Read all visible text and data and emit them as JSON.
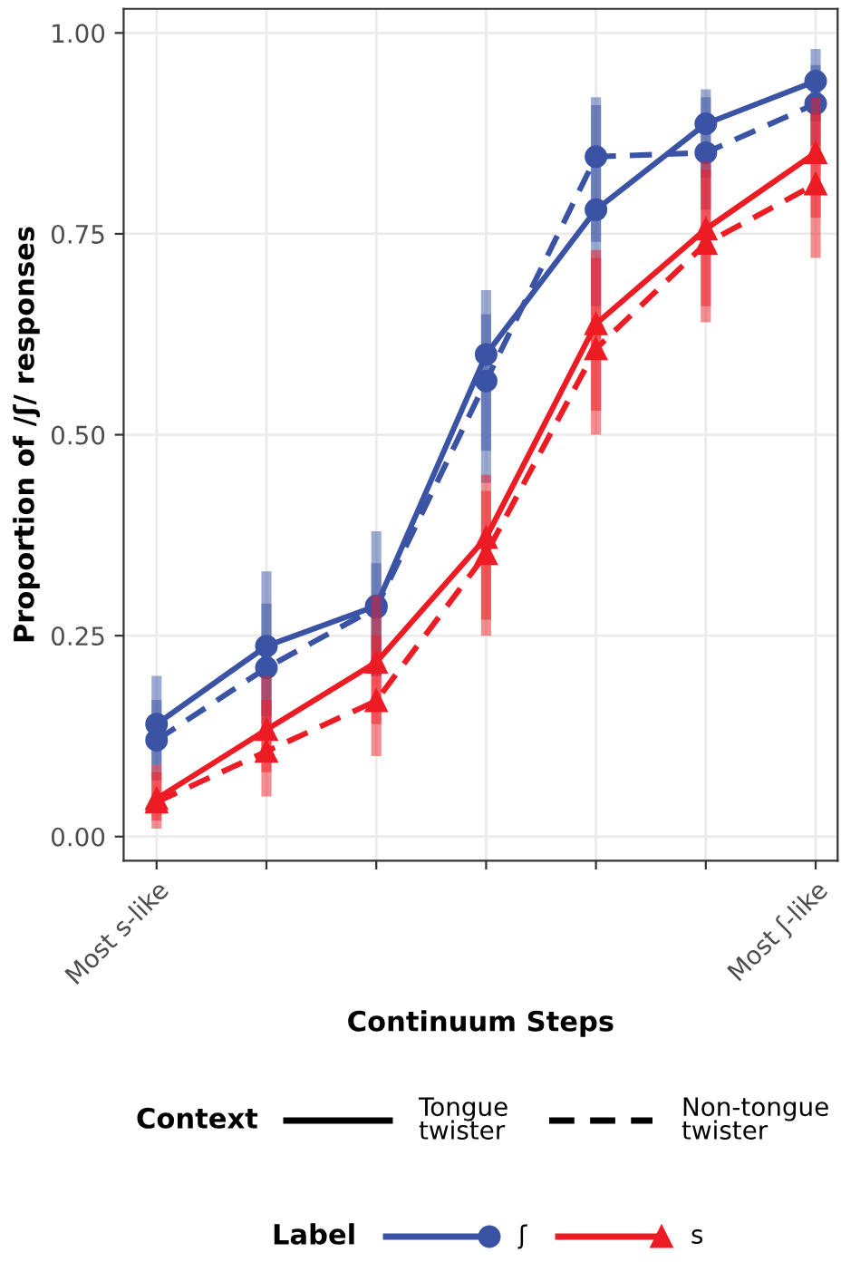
{
  "chart_data": {
    "type": "line",
    "xlabel": "Continuum Steps",
    "ylabel": "Proportion of /ʃ/ responses",
    "categories": [
      "Most s-like",
      null,
      null,
      null,
      null,
      null,
      "Most ʃ-like"
    ],
    "ylim": [
      -0.03,
      1.03
    ],
    "yticks": [
      {
        "value": 0,
        "label": "0.00"
      },
      {
        "value": 0.25,
        "label": "0.25"
      },
      {
        "value": 0.5,
        "label": "0.50"
      },
      {
        "value": 0.75,
        "label": "0.75"
      },
      {
        "value": 1,
        "label": "1.00"
      }
    ],
    "grid": true,
    "legend": "bottom",
    "legend_title": "Label",
    "annotations": [
      "Context",
      "Tongue twister",
      "Non-tongue twister"
    ],
    "series": [
      {
        "name": "ʃ",
        "color": "#3a53a4",
        "marker": "circle",
        "line_style": "solid",
        "values": [
          0.14,
          0.237,
          0.287,
          0.6,
          0.78,
          0.887,
          0.94
        ],
        "errors": [
          [
            0.09,
            0.2
          ],
          [
            0.15,
            0.33
          ],
          [
            0.2,
            0.38
          ],
          [
            0.48,
            0.68
          ],
          [
            0.66,
            0.91
          ],
          [
            0.82,
            0.93
          ],
          [
            0.89,
            0.98
          ]
        ]
      },
      {
        "color": "#3a53a4",
        "marker": "circle",
        "line_style": "dashed",
        "values": [
          0.12,
          0.21,
          0.285,
          0.567,
          0.846,
          0.851,
          0.912
        ],
        "errors": [
          [
            0.07,
            0.17
          ],
          [
            0.14,
            0.29
          ],
          [
            0.2,
            0.34
          ],
          [
            0.44,
            0.65
          ],
          [
            0.74,
            0.92
          ],
          [
            0.78,
            0.92
          ],
          [
            0.86,
            0.96
          ]
        ]
      },
      {
        "name": "s",
        "color": "#ed1c24",
        "marker": "triangle",
        "line_style": "solid",
        "values": [
          0.047,
          0.133,
          0.217,
          0.372,
          0.638,
          0.756,
          0.851
        ],
        "errors": [
          [
            0.02,
            0.09
          ],
          [
            0.08,
            0.2
          ],
          [
            0.14,
            0.3
          ],
          [
            0.27,
            0.45
          ],
          [
            0.53,
            0.73
          ],
          [
            0.66,
            0.84
          ],
          [
            0.77,
            0.92
          ]
        ]
      },
      {
        "color": "#ed1c24",
        "marker": "triangle",
        "line_style": "dashed",
        "values": [
          0.043,
          0.106,
          0.169,
          0.352,
          0.607,
          0.738,
          0.812
        ],
        "errors": [
          [
            0.01,
            0.08
          ],
          [
            0.05,
            0.17
          ],
          [
            0.1,
            0.25
          ],
          [
            0.25,
            0.43
          ],
          [
            0.5,
            0.72
          ],
          [
            0.64,
            0.83
          ],
          [
            0.72,
            0.9
          ]
        ]
      }
    ]
  }
}
